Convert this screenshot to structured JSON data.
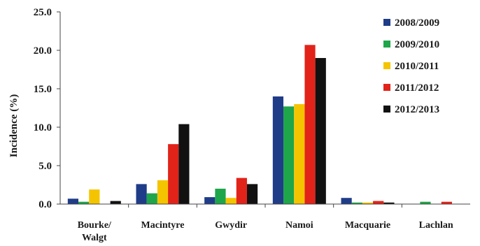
{
  "chart_data": {
    "type": "bar",
    "title": "",
    "xlabel": "",
    "ylabel": "Incidence (%)",
    "ylim": [
      0,
      25
    ],
    "yticks": [
      "0.0",
      "5.0",
      "10.0",
      "15.0",
      "20.0",
      "25.0"
    ],
    "ytick_values": [
      0,
      5,
      10,
      15,
      20,
      25
    ],
    "grid": false,
    "legend_position": "top-right",
    "categories": [
      [
        "Bourke/",
        "Walgt"
      ],
      [
        "Macintyre"
      ],
      [
        "Gwydir"
      ],
      [
        "Namoi"
      ],
      [
        "Macquarie"
      ],
      [
        "Lachlan"
      ]
    ],
    "series": [
      {
        "name": "2008/2009",
        "color": "#1f3c88",
        "values": [
          0.7,
          2.6,
          0.9,
          14.0,
          0.8,
          0.0
        ]
      },
      {
        "name": "2009/2010",
        "color": "#1fa54a",
        "values": [
          0.3,
          1.4,
          2.0,
          12.7,
          0.2,
          0.3
        ]
      },
      {
        "name": "2010/2011",
        "color": "#f5c400",
        "values": [
          1.9,
          3.1,
          0.8,
          13.0,
          0.2,
          0.0
        ]
      },
      {
        "name": "2011/2012",
        "color": "#e2231a",
        "values": [
          0.0,
          7.8,
          3.4,
          20.7,
          0.4,
          0.3
        ]
      },
      {
        "name": "2012/2013",
        "color": "#111111",
        "values": [
          0.4,
          10.4,
          2.6,
          19.0,
          0.2,
          0.0
        ]
      }
    ]
  }
}
